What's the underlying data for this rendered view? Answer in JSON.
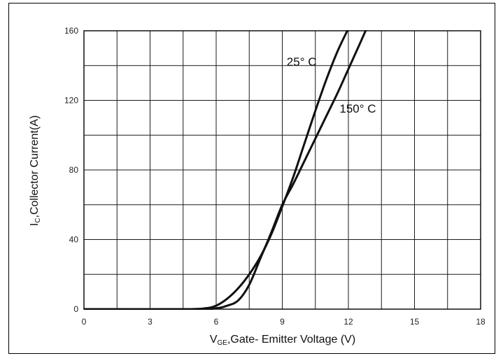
{
  "chart_data": {
    "type": "line",
    "xlabel_main": "V",
    "xlabel_sub": "GE",
    "xlabel_rest": ",Gate- Emitter Voltage (V)",
    "ylabel_main": "I",
    "ylabel_sub": "C",
    "ylabel_rest": ",Collector Current(A)",
    "xlim": [
      0,
      18
    ],
    "ylim": [
      0,
      160
    ],
    "x_ticks": [
      "0",
      "3",
      "6",
      "9",
      "12",
      "15",
      "18"
    ],
    "y_ticks": [
      "0",
      "40",
      "80",
      "120",
      "160"
    ],
    "grid": true,
    "series": [
      {
        "name": "25° C",
        "x": [
          0,
          4.5,
          5.5,
          6.0,
          6.5,
          7.0,
          7.5,
          8.0,
          8.5,
          9.0,
          9.5,
          10.0,
          10.5,
          11.0,
          11.5,
          11.95
        ],
        "y": [
          0,
          0,
          0.5,
          2,
          6,
          12,
          20,
          30,
          43,
          59,
          76,
          95,
          114,
          132,
          148,
          160
        ]
      },
      {
        "name": "150° C",
        "x": [
          0,
          5.0,
          6.0,
          6.5,
          7.0,
          7.5,
          8.0,
          8.5,
          9.0,
          9.5,
          10.0,
          10.5,
          11.0,
          11.5,
          12.0,
          12.5,
          12.85
        ],
        "y": [
          0,
          0,
          0.5,
          2,
          5,
          14,
          29,
          44,
          60,
          72,
          85,
          98,
          111,
          124,
          138,
          152,
          162
        ]
      }
    ],
    "annotations": [
      {
        "text": "25° C",
        "x": 9.2,
        "y": 140
      },
      {
        "text": "150° C",
        "x": 11.6,
        "y": 113
      }
    ]
  }
}
